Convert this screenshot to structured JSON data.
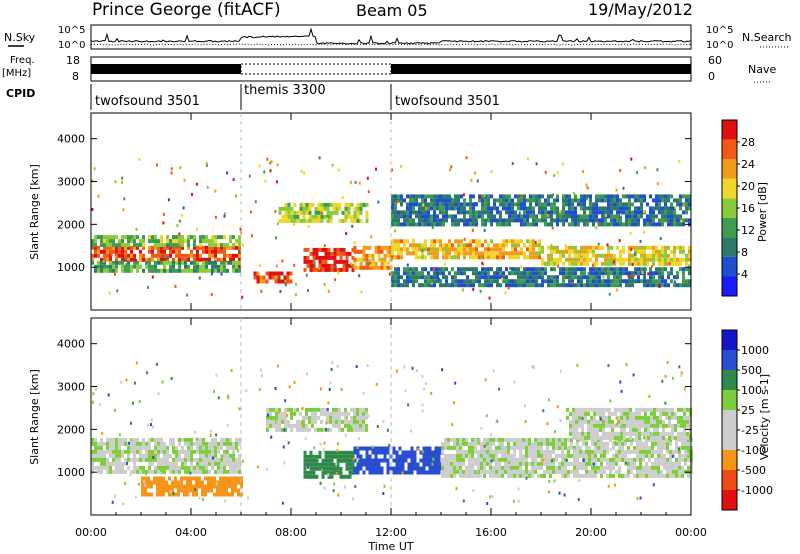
{
  "header": {
    "station": "Prince George (fitACF)",
    "beam": "Beam 05",
    "date": "19/May/2012"
  },
  "colors": {
    "power_scale": [
      "#1b1bff",
      "#1f4fcf",
      "#2c7a6a",
      "#3f9b4f",
      "#8acb3a",
      "#f2d52a",
      "#f39c1c",
      "#f05a14",
      "#e01010"
    ],
    "velocity_scale": [
      "#e01010",
      "#ef4a16",
      "#f5961a",
      "#cdcdcd",
      "#cdcdcd",
      "#7ccf3a",
      "#2f8a4a",
      "#2a4ed2",
      "#1414c8"
    ]
  },
  "top_panels": {
    "nsky_label": "N.Sky",
    "nsky_ticks": [
      "10^5",
      "10^0"
    ],
    "nsearch_label": "N.Search",
    "nsearch_ticks": [
      "10^5",
      "10^0"
    ],
    "freq_label": "Freq.",
    "freq_unit": "[MHz]",
    "freq_ticks": [
      "18",
      "8"
    ],
    "nave_label": "Nave",
    "nave_ticks": [
      "60",
      "0"
    ],
    "cpid_label": "CPID",
    "cpid_segments": [
      {
        "label": "twofsound 3501",
        "start_h": 0,
        "end_h": 6
      },
      {
        "label": "themis 3300",
        "start_h": 6,
        "end_h": 12
      },
      {
        "label": "twofsound 3501",
        "start_h": 12,
        "end_h": 24
      }
    ]
  },
  "chart_data": [
    {
      "type": "heatmap",
      "panel": "power",
      "ylabel": "Slant Range [km]",
      "xlim": [
        "00:00",
        "24:00"
      ],
      "ylim": [
        0,
        4600
      ],
      "y_ticks": [
        1000,
        2000,
        3000,
        4000
      ],
      "colorbar_label": "Power [dB]",
      "colorbar_ticks": [
        "4",
        "8",
        "12",
        "16",
        "20",
        "24",
        "28"
      ],
      "colorbar_range": [
        0,
        30
      ],
      "bands": [
        {
          "t0": 0,
          "t1": 6,
          "r0": 1150,
          "r1": 1500,
          "level": 26
        },
        {
          "t0": 0,
          "t1": 6,
          "r0": 1500,
          "r1": 1750,
          "level": 14
        },
        {
          "t0": 0,
          "t1": 6,
          "r0": 950,
          "r1": 1150,
          "level": 12
        },
        {
          "t0": 6.5,
          "t1": 8,
          "r0": 650,
          "r1": 900,
          "level": 26
        },
        {
          "t0": 8.5,
          "t1": 10.5,
          "r0": 900,
          "r1": 1450,
          "level": 28
        },
        {
          "t0": 10.5,
          "t1": 12,
          "r0": 1000,
          "r1": 1500,
          "level": 22
        },
        {
          "t0": 12,
          "t1": 18,
          "r0": 1200,
          "r1": 1650,
          "level": 20
        },
        {
          "t0": 18,
          "t1": 24,
          "r0": 1050,
          "r1": 1500,
          "level": 18
        },
        {
          "t0": 7.5,
          "t1": 11,
          "r0": 2050,
          "r1": 2500,
          "level": 16
        },
        {
          "t0": 12,
          "t1": 24,
          "r0": 2000,
          "r1": 2700,
          "level": 8
        },
        {
          "t0": 12,
          "t1": 24,
          "r0": 600,
          "r1": 1000,
          "level": 8
        }
      ]
    },
    {
      "type": "heatmap",
      "panel": "velocity",
      "ylabel": "Slant Range [km]",
      "xlabel": "Time UT",
      "x_ticks": [
        "00:00",
        "04:00",
        "08:00",
        "12:00",
        "16:00",
        "20:00",
        "00:00"
      ],
      "xlim": [
        "00:00",
        "24:00"
      ],
      "ylim": [
        0,
        4600
      ],
      "y_ticks": [
        1000,
        2000,
        3000,
        4000
      ],
      "colorbar_label": "Velocity [m s-1]",
      "colorbar_ticks": [
        "-1000",
        "-500",
        "-100",
        "-25",
        "25",
        "100",
        "500",
        "1000"
      ],
      "colorbar_range": [
        -1200,
        1200
      ],
      "bands": [
        {
          "t0": 0,
          "t1": 6,
          "r0": 1000,
          "r1": 1800,
          "level": 0
        },
        {
          "t0": 2,
          "t1": 6,
          "r0": 500,
          "r1": 900,
          "level": -300
        },
        {
          "t0": 8.5,
          "t1": 10.5,
          "r0": 900,
          "r1": 1500,
          "level": 200
        },
        {
          "t0": 10.5,
          "t1": 14,
          "r0": 1000,
          "r1": 1600,
          "level": 700
        },
        {
          "t0": 14,
          "t1": 24,
          "r0": 900,
          "r1": 1800,
          "level": 0
        },
        {
          "t0": 7,
          "t1": 11,
          "r0": 2000,
          "r1": 2500,
          "level": 0
        },
        {
          "t0": 19,
          "t1": 24,
          "r0": 1800,
          "r1": 2500,
          "level": 0
        }
      ]
    }
  ]
}
